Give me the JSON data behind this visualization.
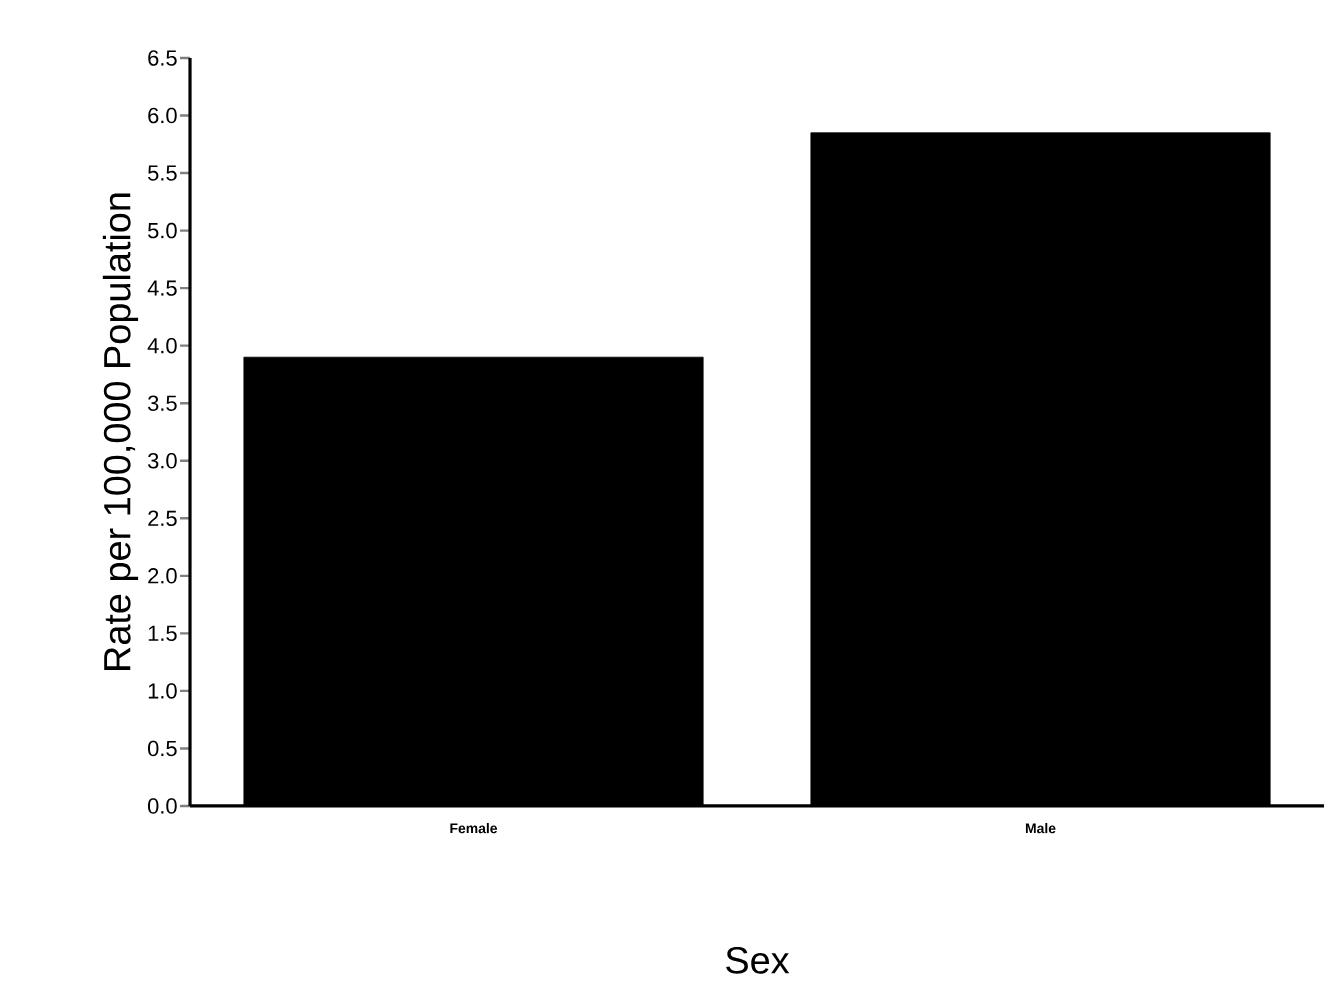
{
  "chart_data": {
    "type": "bar",
    "xlabel": "Sex",
    "ylabel": "Rate per 100,000 Population",
    "categories": [
      "Female",
      "Male"
    ],
    "values": [
      3.9,
      5.85
    ],
    "color": "#000000",
    "ylim": [
      0,
      6.5
    ],
    "yticks": [
      {
        "value": 0,
        "label": "0.0"
      },
      {
        "value": 0.5,
        "label": "0.5"
      },
      {
        "value": 1,
        "label": "1.0"
      },
      {
        "value": 1.5,
        "label": "1.5"
      },
      {
        "value": 2,
        "label": "2.0"
      },
      {
        "value": 2.5,
        "label": "2.5"
      },
      {
        "value": 3,
        "label": "3.0"
      },
      {
        "value": 3.5,
        "label": "3.5"
      },
      {
        "value": 4,
        "label": "4.0"
      },
      {
        "value": 4.5,
        "label": "4.5"
      },
      {
        "value": 5,
        "label": "5.0"
      },
      {
        "value": 5.5,
        "label": "5.5"
      },
      {
        "value": 6,
        "label": "6.0"
      },
      {
        "value": 6.5,
        "label": "6.5"
      }
    ],
    "grid": false
  }
}
